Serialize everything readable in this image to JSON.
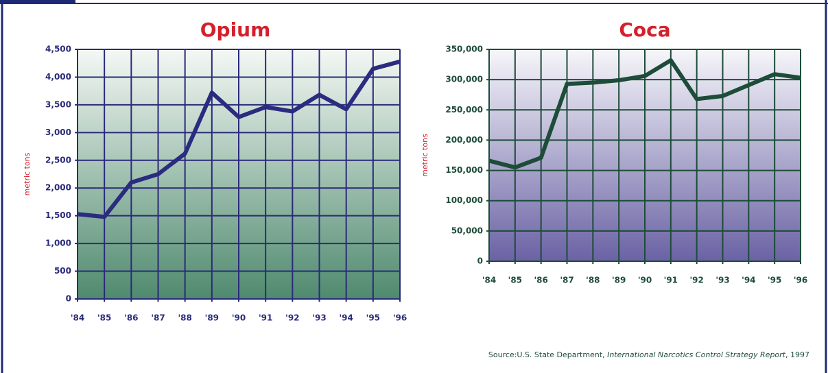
{
  "chart_data": [
    {
      "type": "line",
      "title": "Opium",
      "y_label": "metric tons",
      "categories": [
        "'84",
        "'85",
        "'86",
        "'87",
        "'88",
        "'89",
        "'90",
        "'91",
        "'92",
        "'93",
        "'94",
        "'95",
        "'96"
      ],
      "series": [
        {
          "color": "#2b2b80",
          "values": [
            1530,
            1480,
            2100,
            2250,
            2620,
            3720,
            3280,
            3460,
            3380,
            3680,
            3420,
            4150,
            4280
          ]
        }
      ],
      "ylim": [
        0,
        4500
      ],
      "yticks": [
        0,
        {
          "value": 500,
          "label": "500"
        },
        {
          "value": 1000,
          "label": "1,000"
        },
        {
          "value": 1500,
          "label": "1,500"
        },
        {
          "value": 2000,
          "label": "2,000"
        },
        {
          "value": 2500,
          "label": "2,500"
        },
        {
          "value": 3000,
          "label": "3,000"
        },
        {
          "value": 3500,
          "label": "3,500"
        },
        {
          "value": 4000,
          "label": "4,000"
        },
        {
          "value": 4500,
          "label": "4,500"
        }
      ],
      "grid": true,
      "grid_color": "#2a2a7a",
      "fill_colors": [
        "#f4f8f4",
        "#4f8a6e"
      ]
    },
    {
      "type": "line",
      "title": "Coca",
      "y_label": "metric tons",
      "categories": [
        "'84",
        "'85",
        "'86",
        "'87",
        "'88",
        "'89",
        "'90",
        "'91",
        "'92",
        "'93",
        "'94",
        "'95",
        "'96"
      ],
      "series": [
        {
          "color": "#1d4c38",
          "values": [
            166000,
            155000,
            171000,
            293000,
            295000,
            299000,
            306000,
            332000,
            268000,
            273000,
            291000,
            309000,
            303000
          ]
        }
      ],
      "ylim": [
        0,
        350000
      ],
      "yticks": [
        0,
        {
          "value": 50000,
          "label": "50,000"
        },
        {
          "value": 100000,
          "label": "100,000"
        },
        {
          "value": 150000,
          "label": "150,000"
        },
        {
          "value": 200000,
          "label": "200,000"
        },
        {
          "value": 250000,
          "label": "250,000"
        },
        {
          "value": 300000,
          "label": "300,000"
        },
        {
          "value": 350000,
          "label": "350,000"
        }
      ],
      "grid": true,
      "grid_color": "#1d4c38",
      "fill_colors": [
        "#f6f6fa",
        "#6a62a4"
      ]
    }
  ],
  "source": {
    "prefix": "Source:U.S. State Department, ",
    "title": "International Narcotics Control Strategy Report",
    "suffix": ", 1997"
  }
}
